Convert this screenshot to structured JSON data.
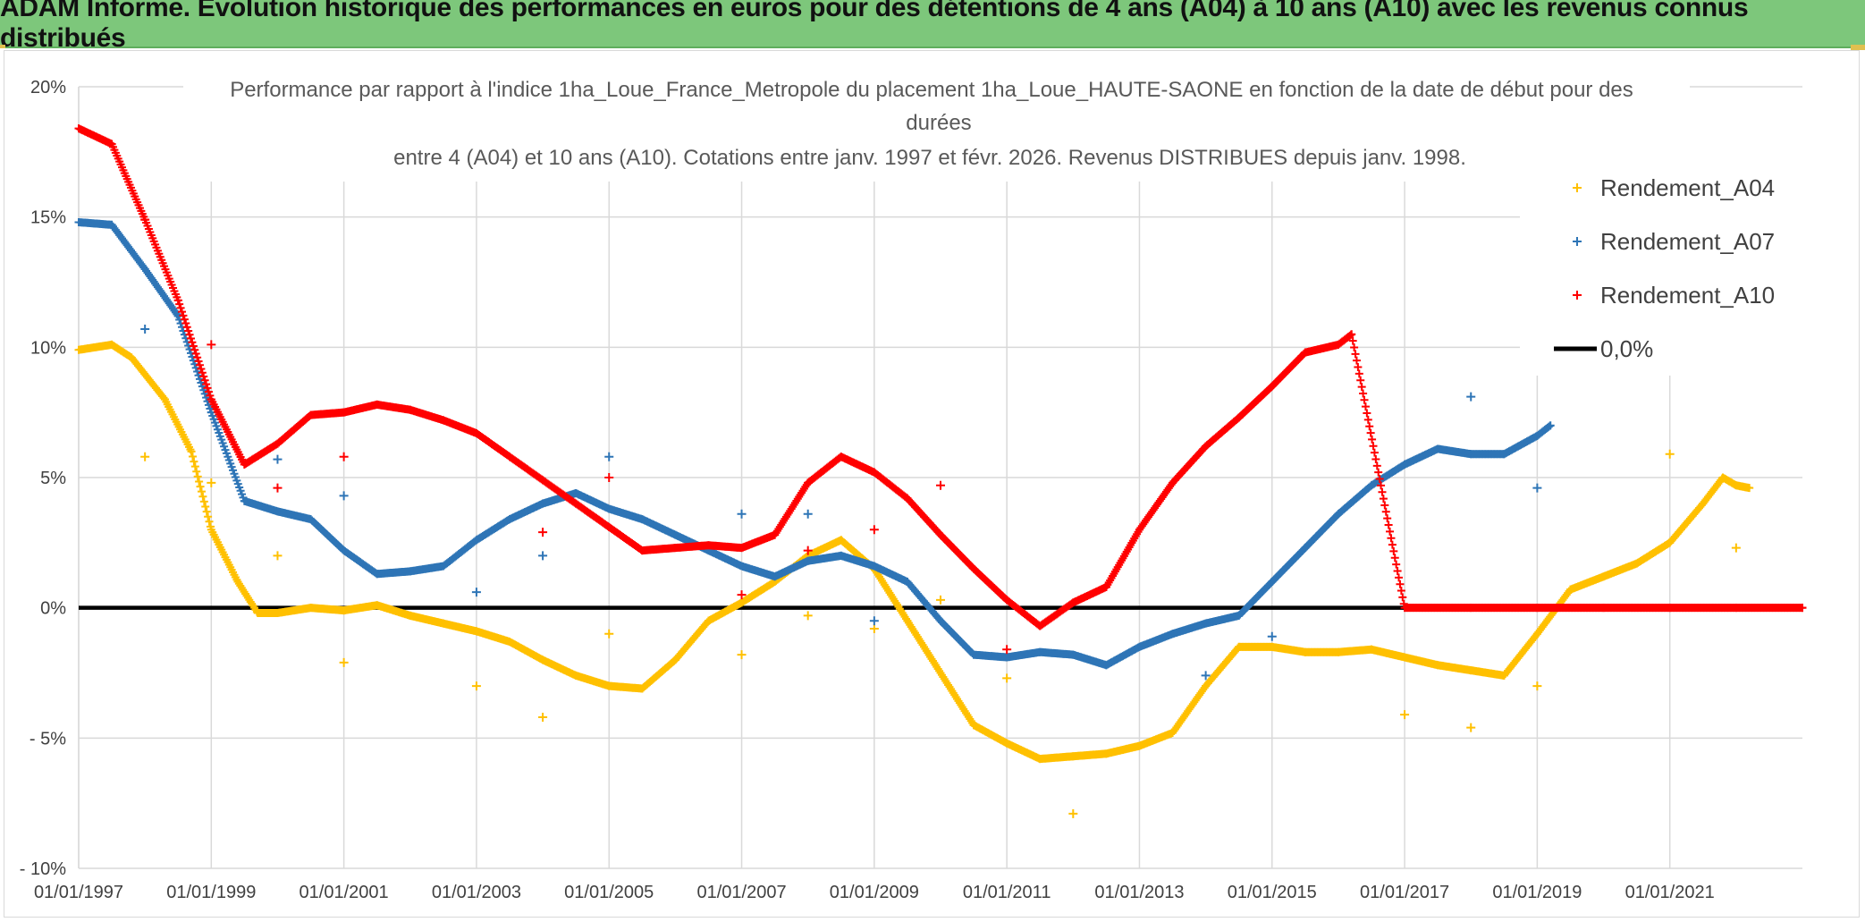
{
  "banner": {
    "text": "ADAM Informe. Evolution historique des performances en euros pour des détentions de 4 ans (A04) à 10 ans (A10) avec les revenus connus distribués"
  },
  "chart_data": {
    "type": "scatter",
    "title_lines": [
      "Performance par rapport à l'indice 1ha_Loue_France_Metropole  du placement 1ha_Loue_HAUTE-SAONE en fonction de la date de début pour des",
      "durées",
      "entre 4 (A04) et 10 ans (A10). Cotations entre janv. 1997 et févr. 2026. Revenus DISTRIBUES depuis janv. 1998."
    ],
    "xlabel": "",
    "ylabel": "",
    "xlim": [
      1997.0,
      2023.0
    ],
    "ylim": [
      -0.1,
      0.2
    ],
    "x_ticks": [
      {
        "value": 1997,
        "label": "01/01/1997"
      },
      {
        "value": 1999,
        "label": "01/01/1999"
      },
      {
        "value": 2001,
        "label": "01/01/2001"
      },
      {
        "value": 2003,
        "label": "01/01/2003"
      },
      {
        "value": 2005,
        "label": "01/01/2005"
      },
      {
        "value": 2007,
        "label": "01/01/2007"
      },
      {
        "value": 2009,
        "label": "01/01/2009"
      },
      {
        "value": 2011,
        "label": "01/01/2011"
      },
      {
        "value": 2013,
        "label": "01/01/2013"
      },
      {
        "value": 2015,
        "label": "01/01/2015"
      },
      {
        "value": 2017,
        "label": "01/01/2017"
      },
      {
        "value": 2019,
        "label": "01/01/2019"
      },
      {
        "value": 2021,
        "label": "01/01/2021"
      }
    ],
    "y_ticks": [
      {
        "value": 0.2,
        "label": "20%"
      },
      {
        "value": 0.15,
        "label": "15%"
      },
      {
        "value": 0.1,
        "label": "10%"
      },
      {
        "value": 0.05,
        "label": "5%"
      },
      {
        "value": 0.0,
        "label": "0%"
      },
      {
        "value": -0.05,
        "label": "- 5%"
      },
      {
        "value": -0.1,
        "label": "- 10%"
      }
    ],
    "grid": true,
    "legend_position": "right",
    "series": [
      {
        "name": "Rendement_A04",
        "color": "#ffc000",
        "marker": "plus",
        "x": [
          1997.0,
          1997.5,
          1997.8,
          1998.3,
          1998.7,
          1999.0,
          1999.4,
          1999.7,
          2000.0,
          2000.5,
          2001.0,
          2001.5,
          2002.0,
          2002.5,
          2003.0,
          2003.5,
          2004.0,
          2004.5,
          2005.0,
          2005.5,
          2006.0,
          2006.5,
          2007.0,
          2007.5,
          2008.0,
          2008.5,
          2009.0,
          2009.5,
          2010.0,
          2010.5,
          2011.0,
          2011.5,
          2012.0,
          2012.5,
          2013.0,
          2013.5,
          2014.0,
          2014.5,
          2015.0,
          2015.5,
          2016.0,
          2016.5,
          2017.0,
          2017.5,
          2018.0,
          2018.5,
          2019.0,
          2019.5,
          2020.0,
          2020.5,
          2021.0,
          2021.5,
          2021.8,
          2022.0,
          2022.2
        ],
        "y": [
          0.099,
          0.101,
          0.096,
          0.08,
          0.06,
          0.03,
          0.01,
          -0.002,
          -0.002,
          0.0,
          -0.001,
          0.001,
          -0.003,
          -0.006,
          -0.009,
          -0.013,
          -0.02,
          -0.026,
          -0.03,
          -0.031,
          -0.02,
          -0.005,
          0.002,
          0.01,
          0.02,
          0.026,
          0.015,
          -0.005,
          -0.025,
          -0.045,
          -0.052,
          -0.058,
          -0.057,
          -0.056,
          -0.053,
          -0.048,
          -0.03,
          -0.015,
          -0.015,
          -0.017,
          -0.017,
          -0.016,
          -0.019,
          -0.022,
          -0.024,
          -0.026,
          -0.01,
          0.007,
          0.012,
          0.017,
          0.025,
          0.04,
          0.05,
          0.047,
          0.046
        ],
        "outliers": {
          "x": [
            1998.0,
            1999.0,
            2000.0,
            2001.0,
            2003.0,
            2004.0,
            2005.0,
            2007.0,
            2008.0,
            2009.0,
            2010.0,
            2011.0,
            2012.0,
            2017.0,
            2018.0,
            2019.0,
            2021.0,
            2022.0
          ],
          "y": [
            0.058,
            0.048,
            0.02,
            -0.021,
            -0.03,
            -0.042,
            -0.01,
            -0.018,
            -0.003,
            -0.008,
            0.003,
            -0.027,
            -0.079,
            -0.041,
            -0.046,
            -0.03,
            0.059,
            0.023
          ]
        }
      },
      {
        "name": "Rendement_A07",
        "color": "#2e75b6",
        "marker": "plus",
        "x": [
          1997.0,
          1997.5,
          1998.0,
          1998.5,
          1999.0,
          1999.5,
          2000.0,
          2000.5,
          2001.0,
          2001.5,
          2002.0,
          2002.5,
          2003.0,
          2003.5,
          2004.0,
          2004.5,
          2005.0,
          2005.5,
          2006.0,
          2006.5,
          2007.0,
          2007.5,
          2008.0,
          2008.5,
          2009.0,
          2009.5,
          2010.0,
          2010.5,
          2011.0,
          2011.5,
          2012.0,
          2012.5,
          2013.0,
          2013.5,
          2014.0,
          2014.5,
          2015.0,
          2015.5,
          2016.0,
          2016.5,
          2017.0,
          2017.5,
          2018.0,
          2018.5,
          2019.0,
          2019.2
        ],
        "y": [
          0.148,
          0.147,
          0.13,
          0.112,
          0.075,
          0.041,
          0.037,
          0.034,
          0.022,
          0.013,
          0.014,
          0.016,
          0.026,
          0.034,
          0.04,
          0.044,
          0.038,
          0.034,
          0.028,
          0.022,
          0.016,
          0.012,
          0.018,
          0.02,
          0.016,
          0.01,
          -0.005,
          -0.018,
          -0.019,
          -0.017,
          -0.018,
          -0.022,
          -0.015,
          -0.01,
          -0.006,
          -0.003,
          0.01,
          0.023,
          0.036,
          0.047,
          0.055,
          0.061,
          0.059,
          0.059,
          0.066,
          0.07
        ],
        "outliers": {
          "x": [
            1998.0,
            2000.0,
            2001.0,
            2003.0,
            2004.0,
            2005.0,
            2007.0,
            2008.0,
            2009.0,
            2014.0,
            2015.0,
            2018.0,
            2019.0
          ],
          "y": [
            0.107,
            0.057,
            0.043,
            0.006,
            0.02,
            0.058,
            0.036,
            0.036,
            -0.005,
            -0.026,
            -0.011,
            0.081,
            0.046
          ]
        }
      },
      {
        "name": "Rendement_A10",
        "color": "#ff0000",
        "marker": "plus",
        "x": [
          1997.0,
          1997.5,
          1998.0,
          1998.5,
          1999.0,
          1999.5,
          2000.0,
          2000.5,
          2001.0,
          2001.5,
          2002.0,
          2002.5,
          2003.0,
          2003.5,
          2004.0,
          2004.5,
          2005.0,
          2005.5,
          2006.0,
          2006.5,
          2007.0,
          2007.5,
          2008.0,
          2008.5,
          2009.0,
          2009.5,
          2010.0,
          2010.5,
          2011.0,
          2011.5,
          2012.0,
          2012.5,
          2013.0,
          2013.5,
          2014.0,
          2014.5,
          2015.0,
          2015.5,
          2016.0,
          2016.2,
          2017.0,
          2018.0,
          2019.0,
          2020.0,
          2021.0,
          2022.0,
          2023.0
        ],
        "y": [
          0.184,
          0.178,
          0.149,
          0.118,
          0.08,
          0.055,
          0.063,
          0.074,
          0.075,
          0.078,
          0.076,
          0.072,
          0.067,
          0.058,
          0.049,
          0.04,
          0.031,
          0.022,
          0.023,
          0.024,
          0.023,
          0.028,
          0.048,
          0.058,
          0.052,
          0.042,
          0.028,
          0.015,
          0.003,
          -0.007,
          0.002,
          0.008,
          0.03,
          0.048,
          0.062,
          0.073,
          0.085,
          0.098,
          0.101,
          0.105,
          0.0,
          0.0,
          0.0,
          0.0,
          0.0,
          0.0,
          0.0
        ],
        "outliers": {
          "x": [
            1998.0,
            1999.0,
            2000.0,
            2001.0,
            2004.0,
            2005.0,
            2007.0,
            2008.0,
            2009.0,
            2010.0,
            2011.0
          ],
          "y": [
            0.149,
            0.101,
            0.046,
            0.058,
            0.029,
            0.05,
            0.005,
            0.022,
            0.03,
            0.047,
            -0.016
          ]
        }
      }
    ],
    "reference_line": {
      "name": "0,0%",
      "value": 0.0,
      "color": "#000000"
    }
  }
}
